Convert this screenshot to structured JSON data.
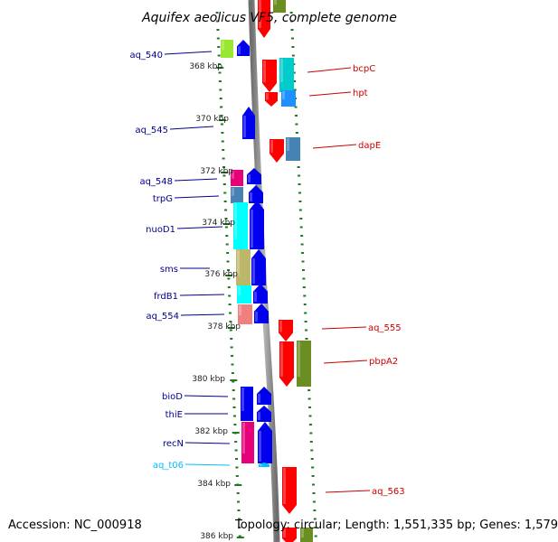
{
  "title": "Aquifex aeolicus VF5, complete genome",
  "footer": {
    "accession": "Accession: NC_000918",
    "topology": "Topology: circular; Length: 1,551,335 bp; Genes: 1,579"
  },
  "colors": {
    "backbone": "#8c8c8c",
    "tick": "#1e7a1e",
    "left_label": "#00008b",
    "right_label": "#cc0000",
    "trna_label": "#00bfff"
  },
  "scale_labels": [
    "368 kbp",
    "370 kbp",
    "372 kbp",
    "374 kbp",
    "376 kbp",
    "378 kbp",
    "380 kbp",
    "382 kbp",
    "384 kbp",
    "386 kbp"
  ],
  "left_labels": [
    "aq_540",
    "aq_545",
    "aq_548",
    "trpG",
    "nuoD1",
    "sms",
    "frdB1",
    "aq_554",
    "bioD",
    "thiE",
    "recN",
    "aq_t06"
  ],
  "right_labels": [
    "bcpC",
    "hpt",
    "dapE",
    "aq_555",
    "pbpA2",
    "aq_563"
  ]
}
